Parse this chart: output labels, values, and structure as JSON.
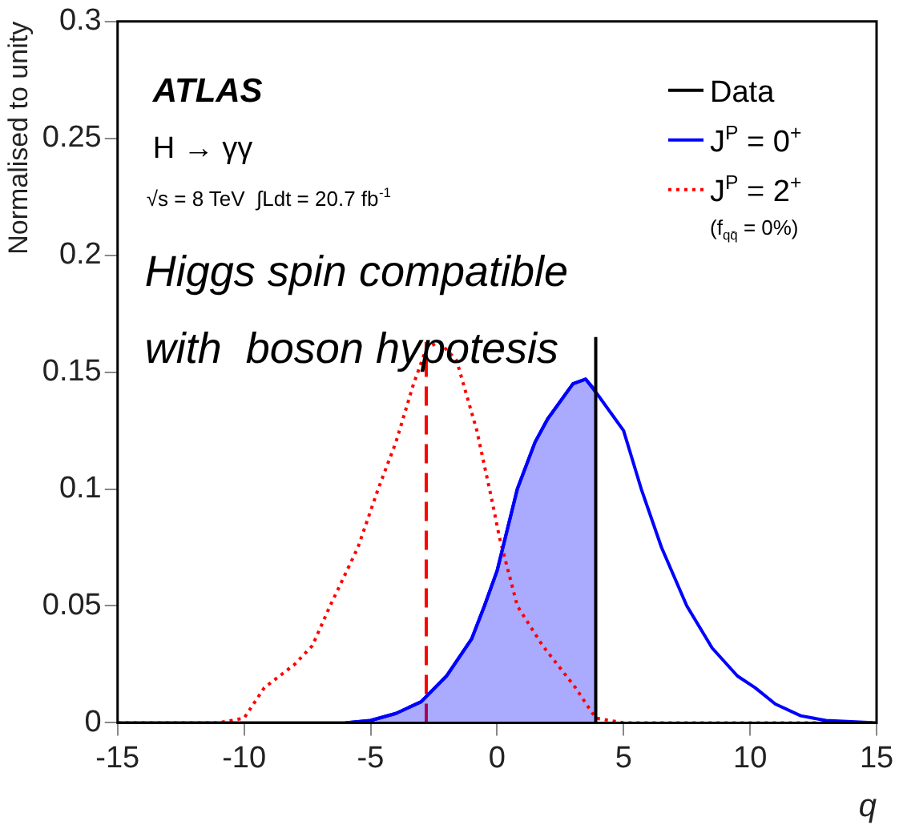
{
  "chart_data": {
    "type": "line",
    "xlabel": "q",
    "ylabel": "Normalised to unity",
    "xlim": [
      -15,
      15
    ],
    "xticks": [
      -15,
      -10,
      -5,
      0,
      5,
      10,
      15
    ],
    "ylim": [
      0,
      0.3
    ],
    "yticks": [
      0,
      0.05,
      0.1,
      0.15,
      0.2,
      0.25,
      0.3
    ],
    "grid": false,
    "legend": "top right",
    "marker": "none",
    "annotations": [
      "ATLAS",
      "H → γγ",
      "√s = 8 TeV  ∫Ldt = 20.7 fb$^{-1}$",
      "(f$_{qq̄}$ = 0%)",
      "Higgs spin compatible with  boson hypotesis"
    ],
    "series": [
      {
        "name": "Data",
        "color": "#000000",
        "line_style": "solid",
        "x": [
          3.9,
          3.9
        ],
        "values": [
          0,
          0.165
        ]
      },
      {
        "name": "J$^{P}$ = 0$^{+}$",
        "color": "#0000ff",
        "line_style": "solid",
        "x": [
          -15,
          -6,
          -5,
          -4,
          -3,
          -2,
          -1,
          -0.5,
          0,
          0.8,
          1.5,
          2,
          3,
          3.5,
          4,
          5,
          5.7,
          6.5,
          7.5,
          8.5,
          9.5,
          10.2,
          11,
          12,
          13,
          15
        ],
        "values": [
          0,
          0,
          0.001,
          0.004,
          0.009,
          0.02,
          0.036,
          0.05,
          0.065,
          0.1,
          0.12,
          0.13,
          0.145,
          0.147,
          0.14,
          0.125,
          0.1,
          0.075,
          0.05,
          0.032,
          0.02,
          0.015,
          0.008,
          0.003,
          0.001,
          0
        ]
      },
      {
        "name": "J$^{P}$ = 2$^{+}$",
        "color": "#ff0000",
        "line_style": "dotted",
        "x": [
          -15,
          -11,
          -10,
          -9.2,
          -8,
          -7.3,
          -6.6,
          -5.5,
          -4.7,
          -4,
          -3.3,
          -2.8,
          -2.3,
          -1.6,
          -1.2,
          -0.8,
          -0.2,
          0.1,
          0.8,
          1.8,
          3.1,
          3.9,
          5,
          15
        ],
        "values": [
          0,
          0,
          0.002,
          0.015,
          0.025,
          0.033,
          0.05,
          0.075,
          0.1,
          0.12,
          0.145,
          0.16,
          0.163,
          0.155,
          0.14,
          0.125,
          0.095,
          0.079,
          0.05,
          0.033,
          0.015,
          0.002,
          0,
          0
        ]
      },
      {
        "type": "area",
        "color": "#0000ff",
        "x": [
          -6,
          -5,
          -4,
          -3,
          -2,
          -1,
          -0.5,
          0,
          0.8,
          1.5,
          2,
          3,
          3.5,
          3.9
        ],
        "values": [
          0,
          0.001,
          0.004,
          0.009,
          0.02,
          0.036,
          0.05,
          0.065,
          0.1,
          0.12,
          0.13,
          0.145,
          0.147,
          0.142
        ]
      },
      {
        "color": "#ff0000",
        "line_style": "dashed",
        "x": [
          -2.8,
          -2.8
        ],
        "values": [
          0,
          0.163
        ]
      }
    ]
  }
}
